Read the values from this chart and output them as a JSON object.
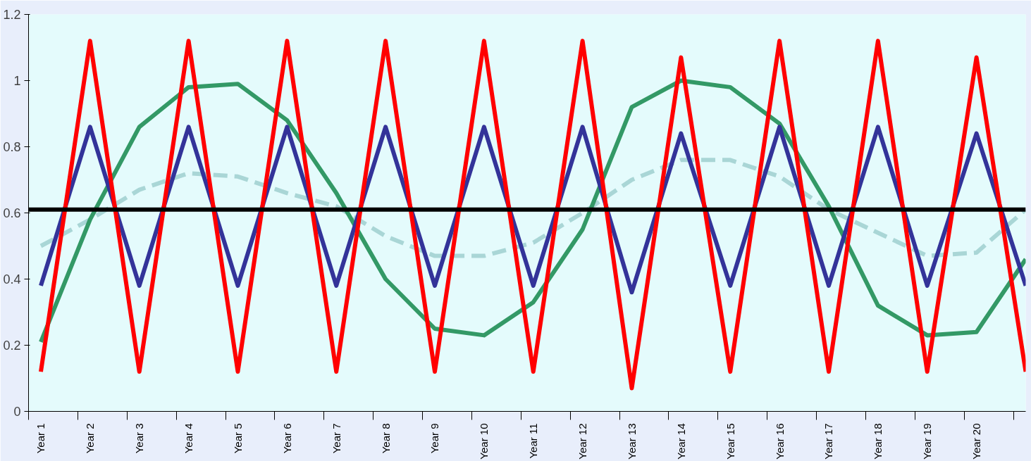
{
  "chart_data": {
    "type": "line",
    "categories": [
      "Year 1",
      "Year 2",
      "Year 3",
      "Year 4",
      "Year 5",
      "Year 6",
      "Year 7",
      "Year 8",
      "Year 9",
      "Year 10",
      "Year 11",
      "Year 12",
      "Year 13",
      "Year 14",
      "Year 15",
      "Year 16",
      "Year 17",
      "Year 18",
      "Year 19",
      "Year 20",
      null
    ],
    "ylim": [
      0,
      1.2
    ],
    "yticks": [
      0,
      0.2,
      0.4,
      0.6,
      0.8,
      1,
      1.2
    ],
    "grid": false,
    "marker": "none",
    "series": [
      {
        "color": "#a9d6d6",
        "line_style": "dashed",
        "values": [
          0.5,
          0.58,
          0.67,
          0.72,
          0.71,
          0.66,
          0.62,
          0.53,
          0.47,
          0.47,
          0.51,
          0.6,
          0.7,
          0.76,
          0.76,
          0.71,
          0.61,
          0.54,
          0.47,
          0.48,
          0.61
        ]
      },
      {
        "color": "#339966",
        "line_style": "solid",
        "values": [
          0.21,
          0.58,
          0.86,
          0.98,
          0.99,
          0.88,
          0.66,
          0.4,
          0.25,
          0.23,
          0.33,
          0.55,
          0.92,
          1.0,
          0.98,
          0.87,
          0.62,
          0.32,
          0.23,
          0.24,
          0.46
        ]
      },
      {
        "color": "#333399",
        "line_style": "solid",
        "values": [
          0.38,
          0.86,
          0.38,
          0.86,
          0.38,
          0.86,
          0.38,
          0.86,
          0.38,
          0.86,
          0.38,
          0.86,
          0.36,
          0.84,
          0.38,
          0.86,
          0.38,
          0.86,
          0.38,
          0.84,
          0.38
        ]
      },
      {
        "color": "#ff0000",
        "line_style": "solid",
        "values": [
          0.12,
          1.12,
          0.12,
          1.12,
          0.12,
          1.12,
          0.12,
          1.12,
          0.12,
          1.12,
          0.12,
          1.12,
          0.07,
          1.07,
          0.12,
          1.12,
          0.12,
          1.12,
          0.12,
          1.07,
          0.12
        ]
      }
    ],
    "ref_lines": [
      {
        "axis": "y",
        "value": 0.61,
        "label": null,
        "color": "#000000",
        "line_style": "solid"
      }
    ]
  }
}
